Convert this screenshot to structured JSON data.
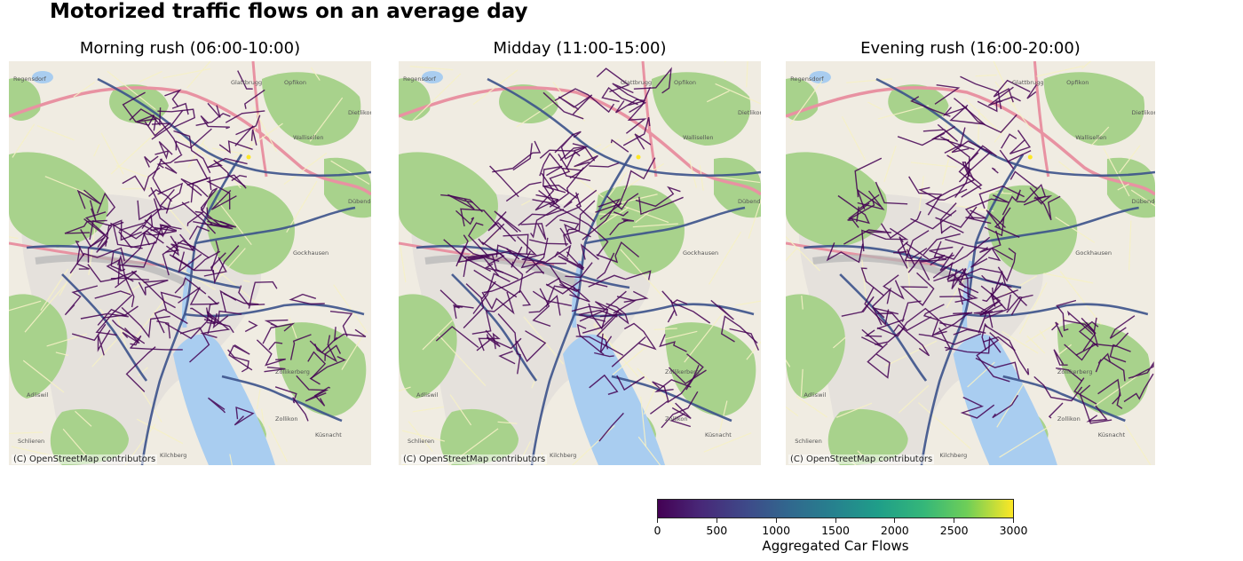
{
  "title": "Motorized traffic flows on an average day",
  "panels": [
    {
      "title": "Morning rush (06:00-10:00)",
      "attribution": "(C) OpenStreetMap contributors"
    },
    {
      "title": "Midday (11:00-15:00)",
      "attribution": "(C) OpenStreetMap contributors"
    },
    {
      "title": "Evening rush (16:00-20:00)",
      "attribution": "(C) OpenStreetMap contributors"
    }
  ],
  "colorbar": {
    "label": "Aggregated Car Flows",
    "ticks": [
      "0",
      "500",
      "1000",
      "1500",
      "2000",
      "2500",
      "3000"
    ],
    "range": [
      0,
      3000
    ],
    "colormap": "viridis"
  },
  "map_places": {
    "top_left": "Regensdorf",
    "top_mid": "Glattbrugg",
    "top_right": "Opfikon",
    "east": "Wallisellen",
    "far_east": "Dübendorf",
    "far_east_top": "Dietlikon",
    "mid_east": "Gockhausen",
    "south_east": "Zollikerberg",
    "south": "Zollikon",
    "south_far": "Kilchberg",
    "south_west": "Adliswil",
    "far_south_east": "Küsnacht",
    "west": "Schlieren"
  },
  "colors": {
    "water": "#a9cdf0",
    "forest": "#a8d28c",
    "urban": "#e5e1dc",
    "motorway": "#e892a2",
    "road": "#f6f1c6",
    "flow_low": "#440154",
    "flow_mid": "#3b528b",
    "flow_high": "#fde725"
  }
}
